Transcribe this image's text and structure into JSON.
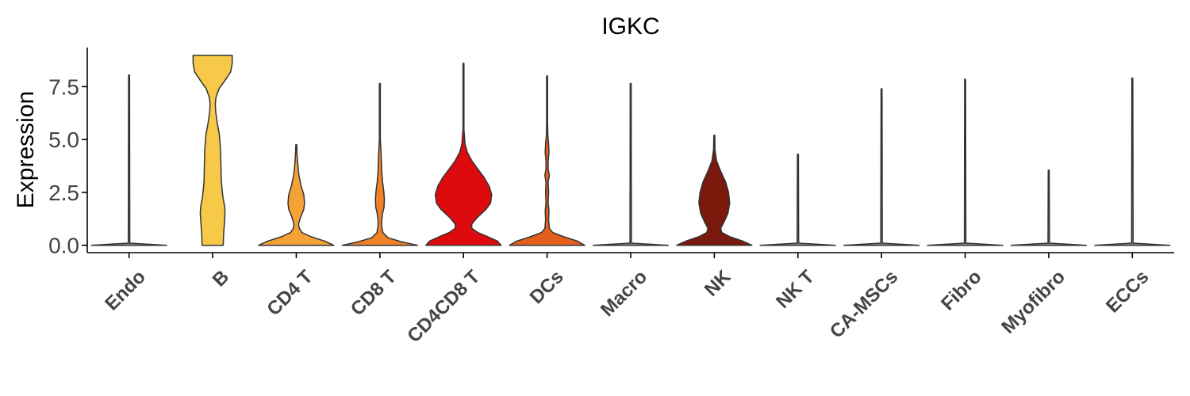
{
  "chart_data": {
    "type": "violin",
    "title": "IGKC",
    "xlabel": "",
    "ylabel": "Expression",
    "ylim": [
      -0.35,
      9.35
    ],
    "yticks": [
      0.0,
      2.5,
      5.0,
      7.5
    ],
    "ytick_labels": [
      "0.0",
      "2.5",
      "5.0",
      "7.5"
    ],
    "grid": false,
    "legend": "none",
    "categories": [
      "Endo",
      "B",
      "CD4 T",
      "CD8 T",
      "CD4CD8 T",
      "DCs",
      "Macro",
      "NK",
      "NK T",
      "CA-MSCs",
      "Fibro",
      "Myofibro",
      "ECCs"
    ],
    "colors": [
      "#888888",
      "#F7C948",
      "#F4A236",
      "#EF8126",
      "#DD0A0E",
      "#E45E1C",
      "#888888",
      "#7A1A0C",
      "#888888",
      "#888888",
      "#888888",
      "#888888",
      "#888888"
    ],
    "max_values": [
      8.05,
      8.98,
      4.75,
      7.65,
      8.6,
      8.0,
      7.65,
      5.2,
      4.3,
      7.4,
      7.85,
      3.55,
      7.9
    ],
    "density": [
      [
        [
          0,
          1.0
        ],
        [
          0.1,
          0.02
        ],
        [
          8.05,
          0.0
        ]
      ],
      [
        [
          0,
          0.28
        ],
        [
          0.5,
          0.29
        ],
        [
          1.0,
          0.31
        ],
        [
          1.5,
          0.33
        ],
        [
          1.8,
          0.32
        ],
        [
          2.3,
          0.27
        ],
        [
          3.0,
          0.23
        ],
        [
          3.8,
          0.22
        ],
        [
          4.5,
          0.21
        ],
        [
          5.2,
          0.18
        ],
        [
          5.8,
          0.12
        ],
        [
          6.3,
          0.08
        ],
        [
          6.7,
          0.07
        ],
        [
          7.0,
          0.09
        ],
        [
          7.4,
          0.17
        ],
        [
          7.8,
          0.33
        ],
        [
          8.2,
          0.48
        ],
        [
          8.6,
          0.52
        ],
        [
          8.98,
          0.52
        ]
      ],
      [
        [
          0,
          1.0
        ],
        [
          0.2,
          0.75
        ],
        [
          0.4,
          0.4
        ],
        [
          0.6,
          0.15
        ],
        [
          0.8,
          0.08
        ],
        [
          1.0,
          0.06
        ],
        [
          1.3,
          0.11
        ],
        [
          1.7,
          0.2
        ],
        [
          2.0,
          0.22
        ],
        [
          2.4,
          0.2
        ],
        [
          2.8,
          0.13
        ],
        [
          3.3,
          0.07
        ],
        [
          3.8,
          0.04
        ],
        [
          4.3,
          0.02
        ],
        [
          4.75,
          0.0
        ]
      ],
      [
        [
          0,
          1.0
        ],
        [
          0.15,
          0.6
        ],
        [
          0.35,
          0.22
        ],
        [
          0.6,
          0.08
        ],
        [
          0.9,
          0.05
        ],
        [
          1.2,
          0.05
        ],
        [
          1.5,
          0.07
        ],
        [
          1.8,
          0.11
        ],
        [
          2.2,
          0.12
        ],
        [
          2.6,
          0.1
        ],
        [
          3.0,
          0.07
        ],
        [
          3.5,
          0.05
        ],
        [
          4.0,
          0.04
        ],
        [
          4.4,
          0.03
        ],
        [
          5.0,
          0.01
        ],
        [
          6.0,
          0.005
        ],
        [
          7.65,
          0.0
        ]
      ],
      [
        [
          0,
          1.0
        ],
        [
          0.2,
          0.9
        ],
        [
          0.4,
          0.65
        ],
        [
          0.6,
          0.38
        ],
        [
          0.8,
          0.22
        ],
        [
          1.0,
          0.22
        ],
        [
          1.3,
          0.36
        ],
        [
          1.7,
          0.6
        ],
        [
          2.0,
          0.72
        ],
        [
          2.4,
          0.75
        ],
        [
          2.8,
          0.68
        ],
        [
          3.2,
          0.55
        ],
        [
          3.6,
          0.38
        ],
        [
          4.0,
          0.22
        ],
        [
          4.4,
          0.1
        ],
        [
          4.8,
          0.04
        ],
        [
          5.5,
          0.01
        ],
        [
          8.6,
          0.0
        ]
      ],
      [
        [
          0,
          1.0
        ],
        [
          0.2,
          0.8
        ],
        [
          0.4,
          0.45
        ],
        [
          0.6,
          0.15
        ],
        [
          0.8,
          0.06
        ],
        [
          1.2,
          0.04
        ],
        [
          1.6,
          0.05
        ],
        [
          2.0,
          0.03
        ],
        [
          2.5,
          0.04
        ],
        [
          3.0,
          0.03
        ],
        [
          3.3,
          0.06
        ],
        [
          3.6,
          0.03
        ],
        [
          4.0,
          0.03
        ],
        [
          4.4,
          0.05
        ],
        [
          4.8,
          0.04
        ],
        [
          5.2,
          0.02
        ],
        [
          5.8,
          0.01
        ],
        [
          8.0,
          0.0
        ]
      ],
      [
        [
          0,
          1.0
        ],
        [
          0.1,
          0.02
        ],
        [
          7.65,
          0.0
        ]
      ],
      [
        [
          0,
          1.0
        ],
        [
          0.2,
          0.75
        ],
        [
          0.4,
          0.42
        ],
        [
          0.6,
          0.2
        ],
        [
          0.8,
          0.17
        ],
        [
          1.1,
          0.26
        ],
        [
          1.5,
          0.36
        ],
        [
          2.0,
          0.41
        ],
        [
          2.5,
          0.38
        ],
        [
          3.0,
          0.3
        ],
        [
          3.5,
          0.17
        ],
        [
          4.0,
          0.06
        ],
        [
          4.5,
          0.02
        ],
        [
          5.2,
          0.0
        ]
      ],
      [
        [
          0,
          1.0
        ],
        [
          0.1,
          0.02
        ],
        [
          4.3,
          0.0
        ]
      ],
      [
        [
          0,
          1.0
        ],
        [
          0.1,
          0.02
        ],
        [
          7.4,
          0.0
        ]
      ],
      [
        [
          0,
          1.0
        ],
        [
          0.1,
          0.02
        ],
        [
          7.85,
          0.0
        ]
      ],
      [
        [
          0,
          1.0
        ],
        [
          0.1,
          0.02
        ],
        [
          3.55,
          0.0
        ]
      ],
      [
        [
          0,
          1.0
        ],
        [
          0.1,
          0.02
        ],
        [
          7.9,
          0.0
        ]
      ]
    ]
  }
}
